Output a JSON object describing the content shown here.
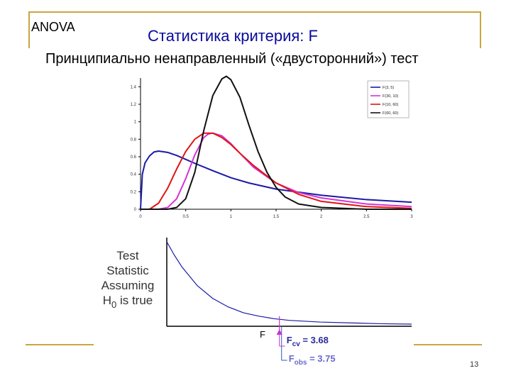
{
  "slide": {
    "tag": "ANOVA",
    "title": "Статистика критерия: F",
    "subtitle": "Принципиально ненаправленный («двусторонний») тест",
    "page_number": "13"
  },
  "colors": {
    "accent_line": "#c9a641",
    "title": "#0a0a9a",
    "cv_marker": "#cc33cc"
  },
  "chart_data": [
    {
      "type": "line",
      "title": "",
      "xlabel": "",
      "ylabel": "",
      "xlim": [
        0,
        3
      ],
      "ylim": [
        0,
        1.5
      ],
      "x_ticks": [
        "0",
        "0.5",
        "1",
        "1.5",
        "2",
        "2.5",
        "3"
      ],
      "y_ticks": [
        "0",
        "0.2",
        "0.4",
        "0.6",
        "0.8",
        "1",
        "1.2",
        "1.4"
      ],
      "grid": false,
      "legend_position": "top-right",
      "series": [
        {
          "name": "F(3, 5)",
          "color": "#1a1aa6",
          "x": [
            0,
            0.02,
            0.05,
            0.1,
            0.15,
            0.2,
            0.3,
            0.4,
            0.5,
            0.6,
            0.8,
            1.0,
            1.2,
            1.5,
            2.0,
            2.5,
            3.0
          ],
          "y": [
            0,
            0.4,
            0.53,
            0.61,
            0.655,
            0.665,
            0.65,
            0.615,
            0.57,
            0.525,
            0.44,
            0.36,
            0.3,
            0.23,
            0.16,
            0.11,
            0.08
          ]
        },
        {
          "name": "F(30, 10)",
          "color": "#d633d6",
          "x": [
            0,
            0.2,
            0.3,
            0.4,
            0.5,
            0.6,
            0.7,
            0.75,
            0.8,
            0.9,
            1.0,
            1.1,
            1.25,
            1.5,
            1.75,
            2.0,
            2.5,
            3.0
          ],
          "y": [
            0,
            0.0,
            0.02,
            0.12,
            0.35,
            0.62,
            0.82,
            0.86,
            0.87,
            0.84,
            0.75,
            0.64,
            0.48,
            0.3,
            0.19,
            0.13,
            0.06,
            0.03
          ]
        },
        {
          "name": "F(10, 60)",
          "color": "#e01414",
          "x": [
            0,
            0.1,
            0.2,
            0.3,
            0.4,
            0.5,
            0.6,
            0.7,
            0.8,
            0.9,
            1.0,
            1.1,
            1.25,
            1.5,
            1.75,
            2.0,
            2.5,
            3.0
          ],
          "y": [
            0,
            0.0,
            0.07,
            0.24,
            0.46,
            0.66,
            0.8,
            0.87,
            0.87,
            0.82,
            0.74,
            0.64,
            0.5,
            0.3,
            0.17,
            0.09,
            0.03,
            0.01
          ]
        },
        {
          "name": "F(60, 60)",
          "color": "#111111",
          "x": [
            0,
            0.3,
            0.4,
            0.5,
            0.6,
            0.7,
            0.8,
            0.9,
            0.95,
            1.0,
            1.1,
            1.2,
            1.3,
            1.4,
            1.5,
            1.6,
            1.75,
            2.0,
            2.5,
            3.0
          ],
          "y": [
            0,
            0.0,
            0.02,
            0.12,
            0.42,
            0.9,
            1.3,
            1.49,
            1.52,
            1.48,
            1.28,
            0.96,
            0.66,
            0.42,
            0.25,
            0.14,
            0.06,
            0.02,
            0.0,
            0.0
          ]
        }
      ]
    },
    {
      "type": "line",
      "ylabel_lines": [
        "Test",
        "Statistic",
        "Assuming",
        "H0 is true"
      ],
      "xlabel": "F",
      "series": [
        {
          "name": "",
          "color": "#1a1aa6",
          "x": [
            0,
            0.25,
            0.5,
            1.0,
            1.5,
            2.0,
            2.5,
            3.0,
            3.5,
            4.0,
            5.0,
            6.0,
            7.0,
            8.0
          ],
          "y": [
            1.0,
            0.84,
            0.7,
            0.48,
            0.33,
            0.23,
            0.16,
            0.12,
            0.09,
            0.07,
            0.05,
            0.04,
            0.03,
            0.025
          ]
        }
      ],
      "xlim": [
        0,
        8
      ],
      "ylim": [
        0,
        1.05
      ],
      "annotations": {
        "cv_label": "F",
        "cv_sub": "cv",
        "cv_value": " = 3.68",
        "obs_label": "F",
        "obs_sub": "obs",
        "obs_value": " = 3.75",
        "cv_x": 3.68,
        "obs_x": 3.75
      }
    }
  ]
}
